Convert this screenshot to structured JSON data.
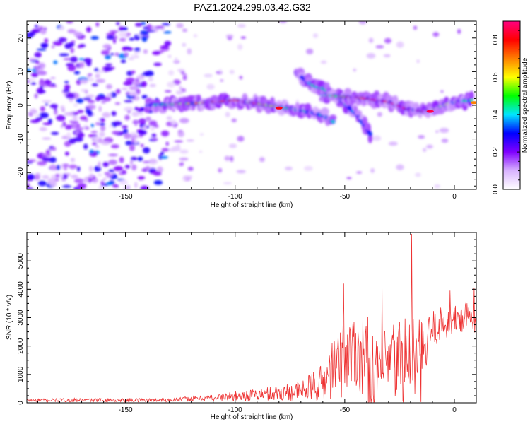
{
  "title": "PAZ1.2024.299.03.42.G32",
  "chart_data": [
    {
      "type": "heatmap",
      "name": "spectrogram",
      "xlabel": "Height of straight line (km)",
      "ylabel": "Frequency (Hz)",
      "xlim": [
        -195,
        10
      ],
      "ylim": [
        -25,
        25
      ],
      "xticks": [
        -150,
        -100,
        -50,
        0
      ],
      "yticks": [
        -20,
        -10,
        0,
        10,
        20
      ],
      "colorbar": {
        "label": "Normalized spectral amplitude",
        "range": [
          0,
          0.9
        ],
        "ticks": [
          0.0,
          0.2,
          0.4,
          0.6,
          0.8
        ],
        "colors": [
          "#ffffff",
          "#d9b3ff",
          "#8000ff",
          "#0000ff",
          "#00e5ff",
          "#00ff00",
          "#ffff00",
          "#ff8000",
          "#ff0000",
          "#ff0080"
        ]
      },
      "ridges": [
        {
          "points": [
            [
              -140,
              0
            ],
            [
              -120,
              0.5
            ],
            [
              -100,
              1.5
            ],
            [
              -90,
              0.5
            ],
            [
              -80,
              -0.5
            ],
            [
              -70,
              -1.5
            ],
            [
              -60,
              -3
            ],
            [
              -55,
              -5
            ]
          ],
          "peak": 0.75
        },
        {
          "points": [
            [
              -72,
              9.5
            ],
            [
              -65,
              6
            ],
            [
              -60,
              5
            ],
            [
              -55,
              3
            ],
            [
              -50,
              0.5
            ],
            [
              -45,
              -2.5
            ],
            [
              -42,
              -5
            ],
            [
              -38,
              -9
            ]
          ],
          "peak": 0.45
        },
        {
          "points": [
            [
              -60,
              3
            ],
            [
              -50,
              2.5
            ],
            [
              -40,
              2
            ],
            [
              -30,
              1
            ],
            [
              -22,
              -1
            ],
            [
              -15,
              -1.8
            ],
            [
              -10,
              -1.5
            ],
            [
              -5,
              0
            ],
            [
              0,
              1
            ],
            [
              8,
              1.5
            ]
          ],
          "peak": 0.9
        }
      ]
    },
    {
      "type": "line",
      "name": "snr",
      "xlabel": "Height of straight line (km)",
      "ylabel": "SNR (10 * v/v)",
      "xlim": [
        -195,
        10
      ],
      "ylim": [
        0,
        6000
      ],
      "xticks": [
        -150,
        -100,
        -50,
        0
      ],
      "yticks": [
        0,
        1000,
        2000,
        3000,
        4000,
        5000
      ],
      "color": "#ee3333",
      "envelope": [
        {
          "x": -195,
          "base": 90,
          "amp": 60
        },
        {
          "x": -130,
          "base": 100,
          "amp": 70
        },
        {
          "x": -110,
          "base": 180,
          "amp": 120
        },
        {
          "x": -90,
          "base": 280,
          "amp": 220
        },
        {
          "x": -70,
          "base": 420,
          "amp": 350
        },
        {
          "x": -60,
          "base": 700,
          "amp": 700
        },
        {
          "x": -50,
          "base": 1700,
          "amp": 1500
        },
        {
          "x": -45,
          "base": 1900,
          "amp": 1300
        },
        {
          "x": -40,
          "base": 1500,
          "amp": 1700
        },
        {
          "x": -35,
          "base": 1000,
          "amp": 1100
        },
        {
          "x": -30,
          "base": 1300,
          "amp": 1500
        },
        {
          "x": -25,
          "base": 1500,
          "amp": 1700
        },
        {
          "x": -20,
          "base": 1400,
          "amp": 2000
        },
        {
          "x": -15,
          "base": 1400,
          "amp": 1500
        },
        {
          "x": -10,
          "base": 2600,
          "amp": 700
        },
        {
          "x": -5,
          "base": 2800,
          "amp": 600
        },
        {
          "x": 0,
          "base": 2900,
          "amp": 550
        },
        {
          "x": 5,
          "base": 3000,
          "amp": 600
        },
        {
          "x": 10,
          "base": 2900,
          "amp": 500
        }
      ],
      "peaks": [
        {
          "x": -19.5,
          "y": 5950
        },
        {
          "x": -50.5,
          "y": 4200
        },
        {
          "x": -33,
          "y": 4050
        },
        {
          "x": 9,
          "y": 4050
        },
        {
          "x": -2,
          "y": 3950
        }
      ]
    }
  ]
}
